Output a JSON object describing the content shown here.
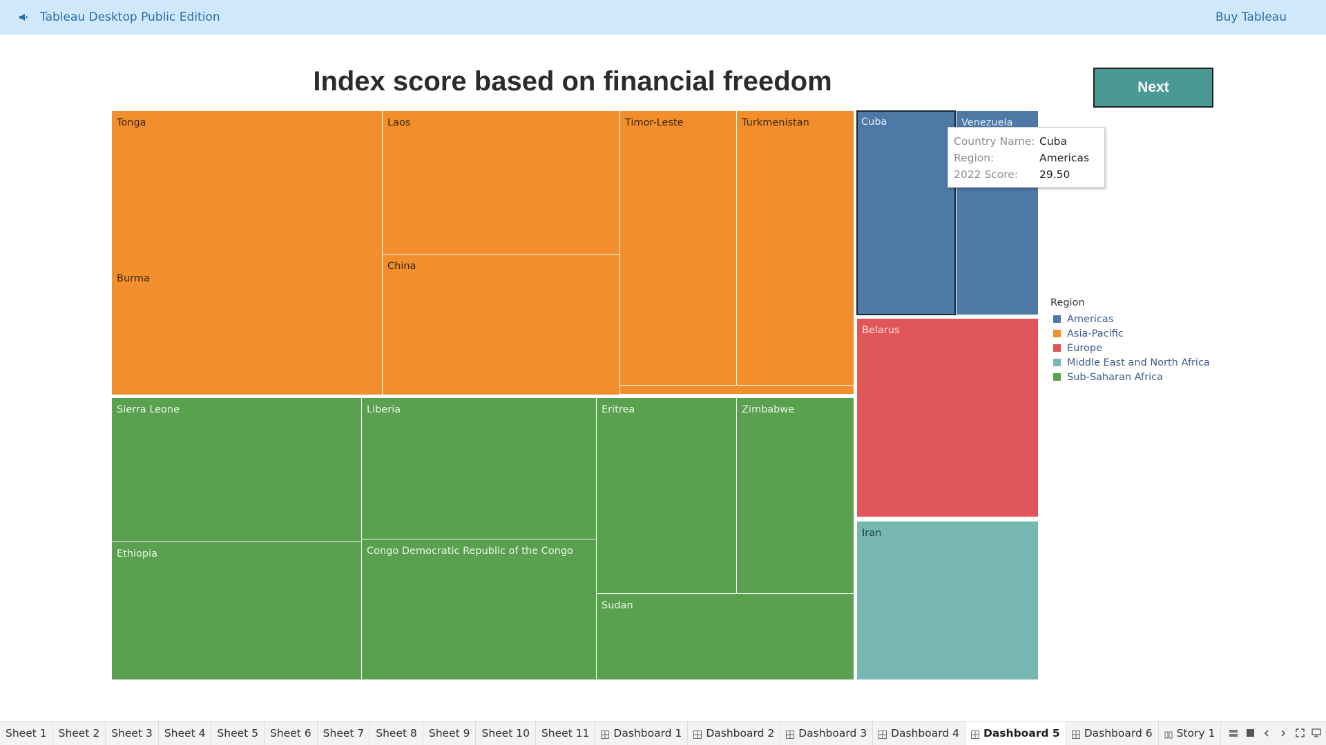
{
  "topbar": {
    "app_title": "Tableau Desktop Public Edition",
    "buy_label": "Buy Tableau",
    "icon": "megaphone-icon"
  },
  "dashboard": {
    "title": "Index score based on financial freedom",
    "next_label": "Next"
  },
  "colors": {
    "Americas": "#4e79a7",
    "Asia-Pacific": "#f28e2b",
    "Europe": "#e15759",
    "Middle East and North Africa": "#76b7b2",
    "Sub-Saharan Africa": "#59a14f"
  },
  "treemap": {
    "countries": [
      {
        "name": "Tonga",
        "region": "Asia-Pacific"
      },
      {
        "name": "Burma",
        "region": "Asia-Pacific"
      },
      {
        "name": "Laos",
        "region": "Asia-Pacific"
      },
      {
        "name": "China",
        "region": "Asia-Pacific"
      },
      {
        "name": "Timor-Leste",
        "region": "Asia-Pacific"
      },
      {
        "name": "Turkmenistan",
        "region": "Asia-Pacific"
      },
      {
        "name": "",
        "region": "Asia-Pacific"
      },
      {
        "name": "Sierra Leone",
        "region": "Sub-Saharan Africa"
      },
      {
        "name": "Ethiopia",
        "region": "Sub-Saharan Africa"
      },
      {
        "name": "Liberia",
        "region": "Sub-Saharan Africa"
      },
      {
        "name": "Congo Democratic Republic of the Congo",
        "region": "Sub-Saharan Africa"
      },
      {
        "name": "Eritrea",
        "region": "Sub-Saharan Africa"
      },
      {
        "name": "Zimbabwe",
        "region": "Sub-Saharan Africa"
      },
      {
        "name": "Sudan",
        "region": "Sub-Saharan Africa"
      },
      {
        "name": "Cuba",
        "region": "Americas"
      },
      {
        "name": "Venezuela",
        "region": "Americas"
      },
      {
        "name": "Belarus",
        "region": "Europe"
      },
      {
        "name": "Iran",
        "region": "Middle East and North Africa"
      }
    ]
  },
  "tooltip": {
    "country_label": "Country Name:",
    "country_value": "Cuba",
    "region_label": "Region:",
    "region_value": "Americas",
    "score_label": "2022 Score:",
    "score_value": "29.50"
  },
  "legend": {
    "title": "Region",
    "items": [
      {
        "label": "Americas",
        "color": "#4e79a7"
      },
      {
        "label": "Asia-Pacific",
        "color": "#f28e2b"
      },
      {
        "label": "Europe",
        "color": "#e15759"
      },
      {
        "label": "Middle East and North Africa",
        "color": "#76b7b2"
      },
      {
        "label": "Sub-Saharan Africa",
        "color": "#59a14f"
      }
    ]
  },
  "tabs": [
    {
      "label": "Sheet 1",
      "kind": "sheet"
    },
    {
      "label": "Sheet 2",
      "kind": "sheet"
    },
    {
      "label": "Sheet 3",
      "kind": "sheet"
    },
    {
      "label": "Sheet 4",
      "kind": "sheet"
    },
    {
      "label": "Sheet 5",
      "kind": "sheet"
    },
    {
      "label": "Sheet 6",
      "kind": "sheet"
    },
    {
      "label": "Sheet 7",
      "kind": "sheet"
    },
    {
      "label": "Sheet 8",
      "kind": "sheet"
    },
    {
      "label": "Sheet 9",
      "kind": "sheet"
    },
    {
      "label": "Sheet 10",
      "kind": "sheet"
    },
    {
      "label": "Sheet 11",
      "kind": "sheet"
    },
    {
      "label": "Dashboard 1",
      "kind": "dashboard"
    },
    {
      "label": "Dashboard 2",
      "kind": "dashboard"
    },
    {
      "label": "Dashboard 3",
      "kind": "dashboard"
    },
    {
      "label": "Dashboard 4",
      "kind": "dashboard"
    },
    {
      "label": "Dashboard 5",
      "kind": "dashboard",
      "active": true
    },
    {
      "label": "Dashboard 6",
      "kind": "dashboard"
    },
    {
      "label": "Story 1",
      "kind": "story"
    }
  ]
}
